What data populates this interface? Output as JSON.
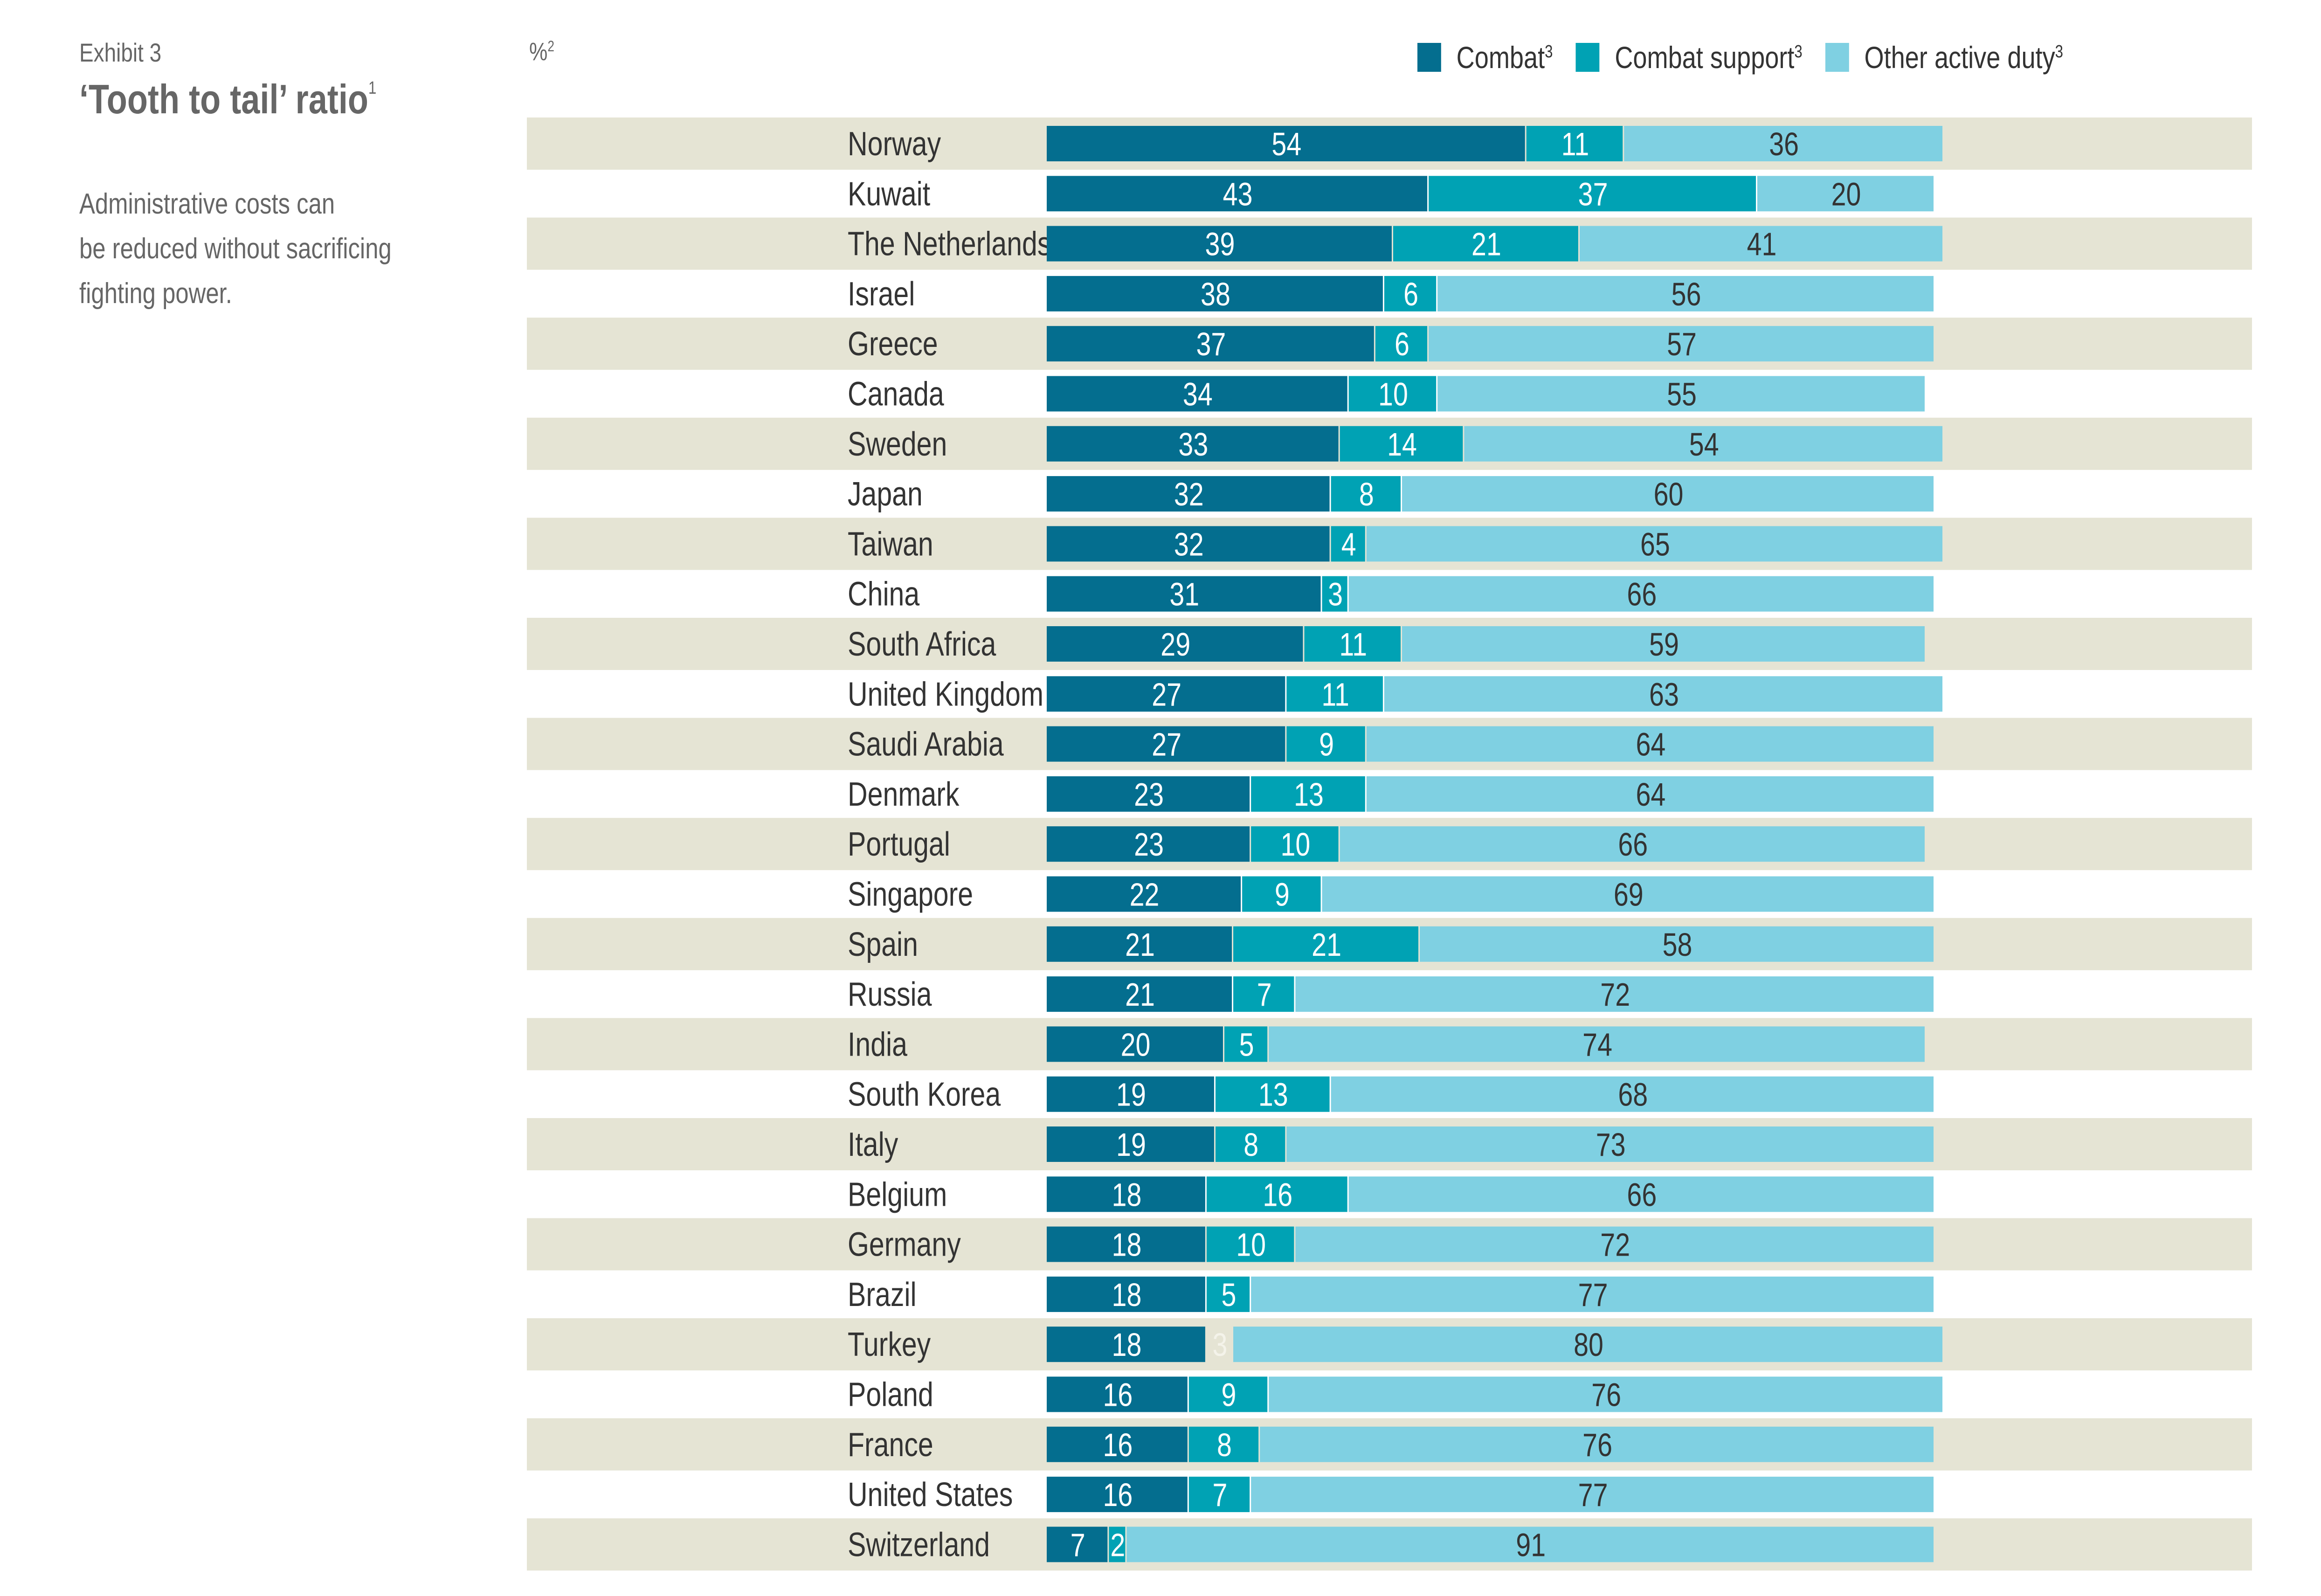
{
  "header": {
    "exhibit": "Exhibit 3",
    "title": "‘Tooth to tail’ ratio",
    "title_footnote": "1",
    "subtitle_lines": [
      "Administrative costs can",
      "be reduced without sacrificing",
      "fighting power."
    ],
    "unit": "%",
    "unit_footnote": "2"
  },
  "colors": {
    "combat": "#046e8f",
    "combat_support": "#00a2b4",
    "other_active_duty": "#7fd0e2",
    "band": "#e5e4d4",
    "label_light": "#ffffff",
    "label_dark": "#333333"
  },
  "chart_data": {
    "type": "bar",
    "orientation": "horizontal",
    "stacked": true,
    "title": "‘Tooth to tail’ ratio",
    "xlabel": "%",
    "ylabel": "",
    "xlim": [
      0,
      100
    ],
    "grid": false,
    "legend_position": "top-right",
    "legend": [
      {
        "name": "Combat",
        "footnote": "3"
      },
      {
        "name": "Combat support",
        "footnote": "3"
      },
      {
        "name": "Other active duty",
        "footnote": "3"
      }
    ],
    "categories": [
      "Norway",
      "Kuwait",
      "The Netherlands",
      "Israel",
      "Greece",
      "Canada",
      "Sweden",
      "Japan",
      "Taiwan",
      "China",
      "South Africa",
      "United Kingdom",
      "Saudi Arabia",
      "Denmark",
      "Portugal",
      "Singapore",
      "Spain",
      "Russia",
      "India",
      "South Korea",
      "Italy",
      "Belgium",
      "Germany",
      "Brazil",
      "Turkey",
      "Poland",
      "France",
      "United States",
      "Switzerland"
    ],
    "series": [
      {
        "name": "Combat",
        "values": [
          54,
          43,
          39,
          38,
          37,
          34,
          33,
          32,
          32,
          31,
          29,
          27,
          27,
          23,
          23,
          22,
          21,
          21,
          20,
          19,
          19,
          18,
          18,
          18,
          18,
          16,
          16,
          16,
          7
        ]
      },
      {
        "name": "Combat support",
        "values": [
          11,
          37,
          21,
          6,
          6,
          10,
          14,
          8,
          4,
          3,
          11,
          11,
          9,
          13,
          10,
          9,
          21,
          7,
          5,
          13,
          8,
          16,
          10,
          5,
          3,
          9,
          8,
          7,
          2
        ]
      },
      {
        "name": "Other active duty",
        "values": [
          36,
          20,
          41,
          56,
          57,
          55,
          54,
          60,
          65,
          66,
          59,
          63,
          64,
          64,
          66,
          69,
          58,
          72,
          74,
          68,
          73,
          66,
          72,
          77,
          80,
          76,
          76,
          77,
          91
        ]
      }
    ],
    "notes": [
      "Turkey combat support segment (3) is not filled; its label appears faintly on the background band."
    ]
  }
}
